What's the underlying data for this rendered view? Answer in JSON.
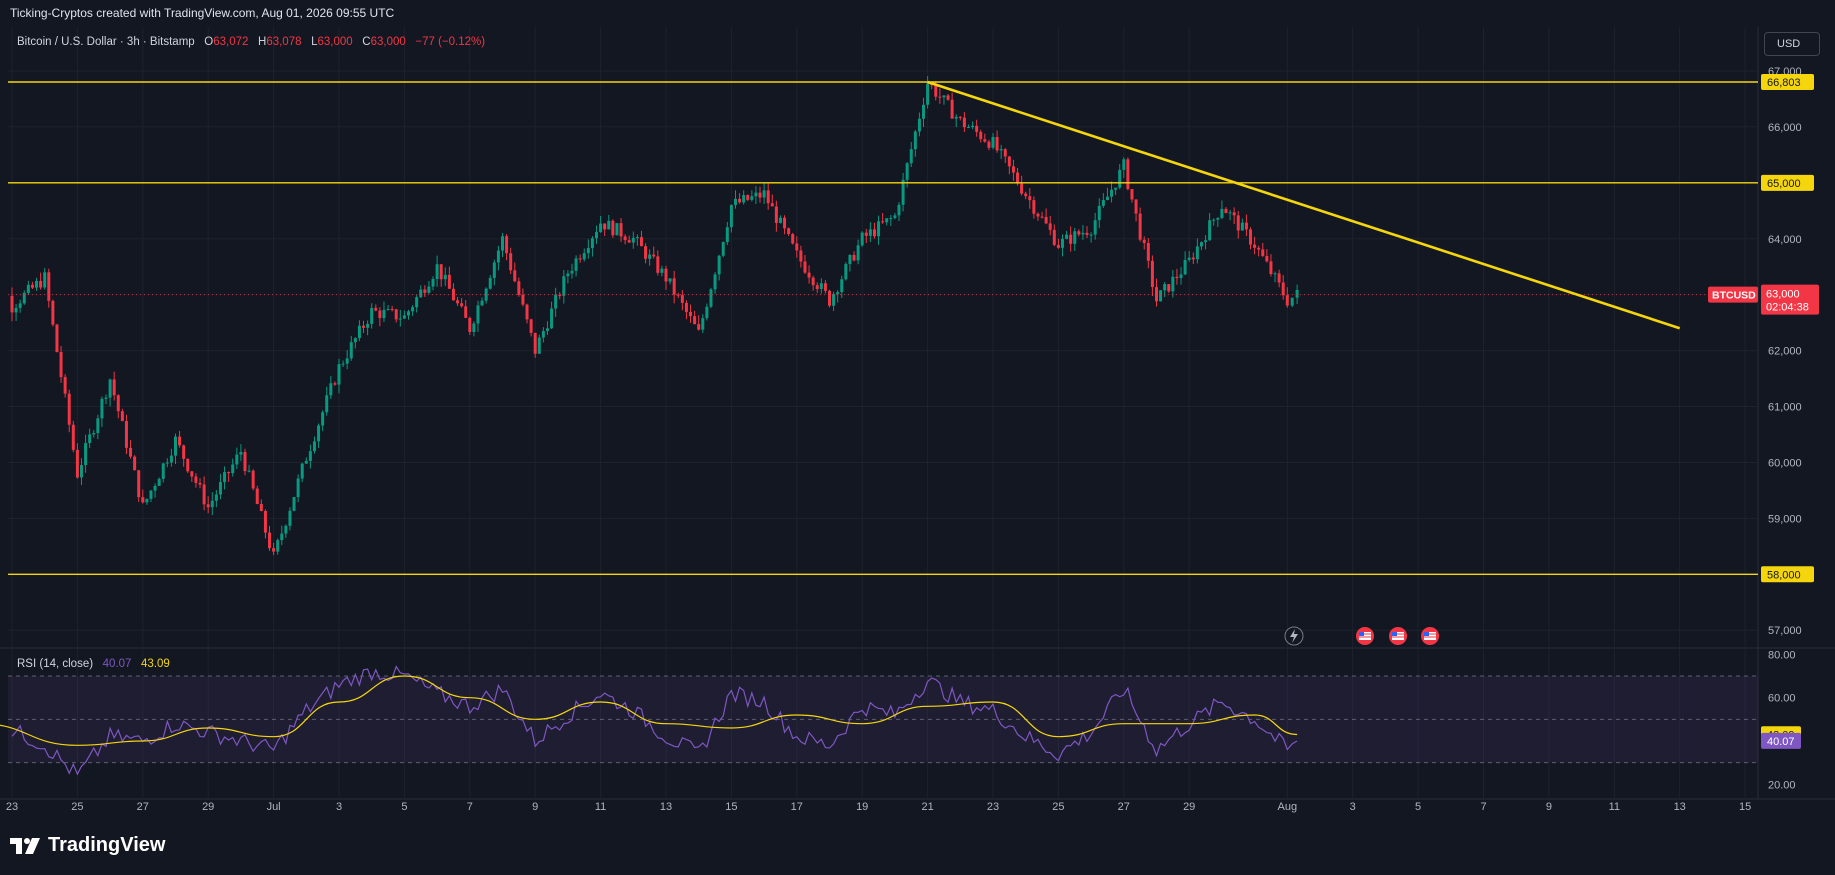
{
  "header": {
    "attribution": "Ticking-Cryptos created with TradingView.com, Aug 01, 2026 09:55 UTC"
  },
  "legend": {
    "symbol": "Bitcoin / U.S. Dollar · 3h · Bitstamp",
    "o_label": "O",
    "o_value": "63,072",
    "h_label": "H",
    "h_value": "63,078",
    "l_label": "L",
    "l_value": "63,000",
    "c_label": "C",
    "c_value": "63,000",
    "change": "−77 (−0.12%)"
  },
  "currency_button": "USD",
  "price_tag": {
    "symbol": "BTCUSD",
    "price": "63,000",
    "countdown": "02:04:38"
  },
  "level_tags": [
    "66,803",
    "65,000",
    "58,000"
  ],
  "rsi_legend": {
    "label": "RSI (14, close)",
    "rsi_value": "40.07",
    "ma_value": "43.09"
  },
  "branding": {
    "logo_text": "TradingView"
  },
  "colors": {
    "background": "#131722",
    "up_candle": "#089981",
    "down_candle": "#f23645",
    "level_line": "#f5d60d",
    "trendline": "#f5d60d",
    "rsi_line": "#7e57c2",
    "rsi_ma": "#f5d60d",
    "grid": "#1e222d"
  },
  "chart_data": [
    {
      "type": "candlestick",
      "title": "Bitcoin / U.S. Dollar · 3h · Bitstamp",
      "x_ticks": [
        "23",
        "25",
        "27",
        "29",
        "Jul",
        "3",
        "5",
        "7",
        "9",
        "11",
        "13",
        "15",
        "17",
        "19",
        "21",
        "23",
        "25",
        "27",
        "29",
        "Aug",
        "3",
        "5",
        "7",
        "9",
        "11",
        "13",
        "15"
      ],
      "y_ticks": [
        "57,000",
        "58,000",
        "59,000",
        "60,000",
        "61,000",
        "62,000",
        "63,000",
        "64,000",
        "65,000",
        "66,000",
        "67,000"
      ],
      "y_range": [
        56700,
        67250
      ],
      "horizontal_levels": [
        66803,
        65000,
        58000
      ],
      "trendline": {
        "from": {
          "date": "Jul 21",
          "price": 66803
        },
        "to": {
          "date": "Aug 13",
          "price": 62400
        }
      },
      "last_price": 63000,
      "swing_points": [
        {
          "date": "Jun 22",
          "price": 64100
        },
        {
          "date": "Jun 23",
          "price": 62800
        },
        {
          "date": "Jun 24",
          "price": 63300
        },
        {
          "date": "Jun 25",
          "price": 59800
        },
        {
          "date": "Jun 26",
          "price": 61500
        },
        {
          "date": "Jun 27",
          "price": 59200
        },
        {
          "date": "Jun 28",
          "price": 60400
        },
        {
          "date": "Jun 29",
          "price": 59200
        },
        {
          "date": "Jun 30",
          "price": 60200
        },
        {
          "date": "Jul 1",
          "price": 58300
        },
        {
          "date": "Jul 2",
          "price": 60100
        },
        {
          "date": "Jul 3",
          "price": 61700
        },
        {
          "date": "Jul 4",
          "price": 62700
        },
        {
          "date": "Jul 5",
          "price": 62600
        },
        {
          "date": "Jul 6",
          "price": 63500
        },
        {
          "date": "Jul 7",
          "price": 62400
        },
        {
          "date": "Jul 8",
          "price": 64000
        },
        {
          "date": "Jul 9",
          "price": 62000
        },
        {
          "date": "Jul 10",
          "price": 63400
        },
        {
          "date": "Jul 11",
          "price": 64300
        },
        {
          "date": "Jul 12",
          "price": 64000
        },
        {
          "date": "Jul 13",
          "price": 63300
        },
        {
          "date": "Jul 14",
          "price": 62300
        },
        {
          "date": "Jul 15",
          "price": 64600
        },
        {
          "date": "Jul 16",
          "price": 64800
        },
        {
          "date": "Jul 17",
          "price": 63700
        },
        {
          "date": "Jul 18",
          "price": 62900
        },
        {
          "date": "Jul 19",
          "price": 64000
        },
        {
          "date": "Jul 20",
          "price": 64400
        },
        {
          "date": "Jul 21",
          "price": 66800
        },
        {
          "date": "Jul 22",
          "price": 66100
        },
        {
          "date": "Jul 23",
          "price": 65700
        },
        {
          "date": "Jul 24",
          "price": 64800
        },
        {
          "date": "Jul 25",
          "price": 63900
        },
        {
          "date": "Jul 26",
          "price": 64200
        },
        {
          "date": "Jul 27",
          "price": 65300
        },
        {
          "date": "Jul 28",
          "price": 62900
        },
        {
          "date": "Jul 29",
          "price": 63600
        },
        {
          "date": "Jul 30",
          "price": 64600
        },
        {
          "date": "Jul 31",
          "price": 63900
        },
        {
          "date": "Aug 1",
          "price": 62900
        },
        {
          "date": "Aug 1",
          "price": 63000
        }
      ]
    },
    {
      "type": "line",
      "title": "RSI (14, close)",
      "y_ticks": [
        "20.00",
        "40.00",
        "60.00",
        "80.00"
      ],
      "y_range": [
        16,
        82
      ],
      "bands": [
        30,
        50,
        70
      ],
      "rsi_last": 40.07,
      "ma_last": 43.09,
      "rsi_points": [
        {
          "date": "Jun 22",
          "value": 52
        },
        {
          "date": "Jun 24",
          "value": 38
        },
        {
          "date": "Jun 25",
          "value": 24
        },
        {
          "date": "Jun 26",
          "value": 42
        },
        {
          "date": "Jun 27",
          "value": 40
        },
        {
          "date": "Jun 28",
          "value": 48
        },
        {
          "date": "Jun 29",
          "value": 44
        },
        {
          "date": "Jun 30",
          "value": 40
        },
        {
          "date": "Jul 1",
          "value": 36
        },
        {
          "date": "Jul 2",
          "value": 54
        },
        {
          "date": "Jul 3",
          "value": 66
        },
        {
          "date": "Jul 4",
          "value": 72
        },
        {
          "date": "Jul 5",
          "value": 70
        },
        {
          "date": "Jul 6",
          "value": 62
        },
        {
          "date": "Jul 7",
          "value": 56
        },
        {
          "date": "Jul 8",
          "value": 64
        },
        {
          "date": "Jul 9",
          "value": 40
        },
        {
          "date": "Jul 10",
          "value": 52
        },
        {
          "date": "Jul 11",
          "value": 62
        },
        {
          "date": "Jul 12",
          "value": 54
        },
        {
          "date": "Jul 13",
          "value": 42
        },
        {
          "date": "Jul 14",
          "value": 34
        },
        {
          "date": "Jul 15",
          "value": 62
        },
        {
          "date": "Jul 16",
          "value": 58
        },
        {
          "date": "Jul 17",
          "value": 42
        },
        {
          "date": "Jul 18",
          "value": 38
        },
        {
          "date": "Jul 19",
          "value": 56
        },
        {
          "date": "Jul 20",
          "value": 52
        },
        {
          "date": "Jul 21",
          "value": 68
        },
        {
          "date": "Jul 22",
          "value": 58
        },
        {
          "date": "Jul 23",
          "value": 54
        },
        {
          "date": "Jul 24",
          "value": 42
        },
        {
          "date": "Jul 25",
          "value": 34
        },
        {
          "date": "Jul 26",
          "value": 44
        },
        {
          "date": "Jul 27",
          "value": 64
        },
        {
          "date": "Jul 28",
          "value": 36
        },
        {
          "date": "Jul 29",
          "value": 48
        },
        {
          "date": "Jul 30",
          "value": 58
        },
        {
          "date": "Jul 31",
          "value": 50
        },
        {
          "date": "Aug 1",
          "value": 36
        },
        {
          "date": "Aug 1",
          "value": 40
        }
      ],
      "ma_points": [
        {
          "date": "Jun 22",
          "value": 48
        },
        {
          "date": "Jun 25",
          "value": 38
        },
        {
          "date": "Jun 27",
          "value": 40
        },
        {
          "date": "Jun 29",
          "value": 46
        },
        {
          "date": "Jul 1",
          "value": 42
        },
        {
          "date": "Jul 3",
          "value": 58
        },
        {
          "date": "Jul 5",
          "value": 70
        },
        {
          "date": "Jul 7",
          "value": 60
        },
        {
          "date": "Jul 9",
          "value": 50
        },
        {
          "date": "Jul 11",
          "value": 58
        },
        {
          "date": "Jul 13",
          "value": 48
        },
        {
          "date": "Jul 15",
          "value": 46
        },
        {
          "date": "Jul 17",
          "value": 52
        },
        {
          "date": "Jul 19",
          "value": 48
        },
        {
          "date": "Jul 21",
          "value": 56
        },
        {
          "date": "Jul 23",
          "value": 58
        },
        {
          "date": "Jul 25",
          "value": 42
        },
        {
          "date": "Jul 27",
          "value": 48
        },
        {
          "date": "Jul 29",
          "value": 48
        },
        {
          "date": "Jul 31",
          "value": 52
        },
        {
          "date": "Aug 1",
          "value": 43
        }
      ]
    }
  ]
}
